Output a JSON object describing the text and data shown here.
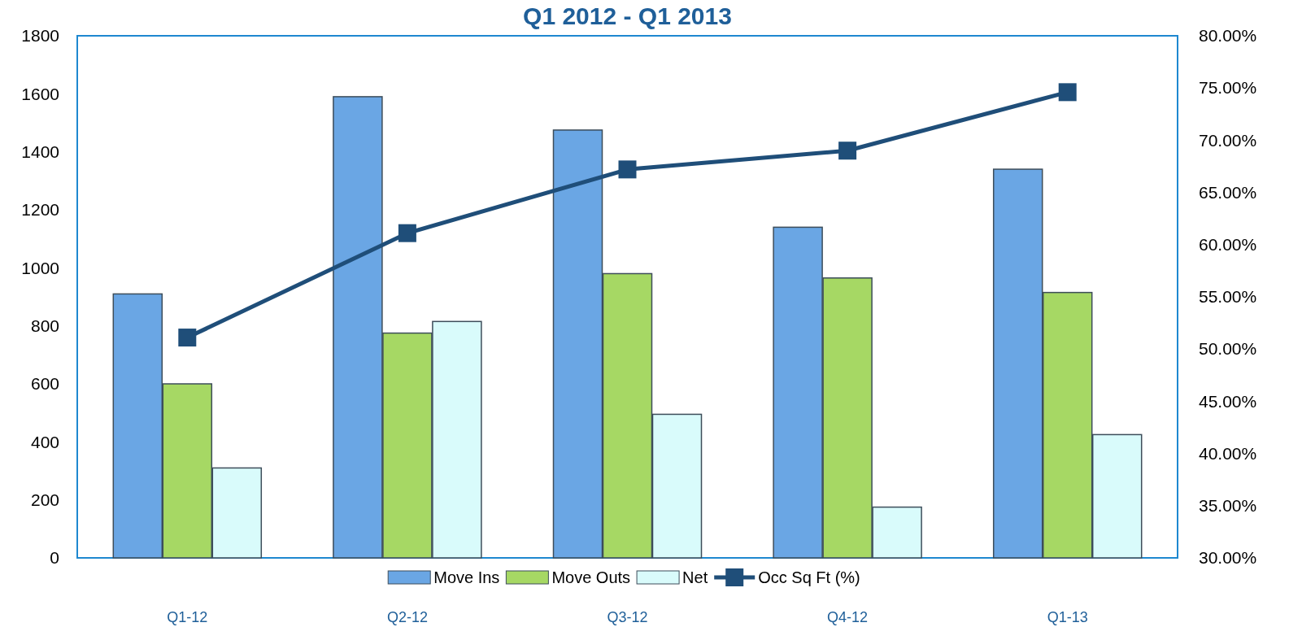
{
  "chart_data": {
    "type": "bar",
    "title": "Q1 2012 - Q1 2013",
    "categories": [
      "Q1-12",
      "Q2-12",
      "Q3-12",
      "Q4-12",
      "Q1-13"
    ],
    "series": [
      {
        "name": "Move Ins",
        "color": "#6aa6e4",
        "values": [
          910,
          1590,
          1475,
          1140,
          1340
        ]
      },
      {
        "name": "Move Outs",
        "color": "#a6d864",
        "values": [
          600,
          775,
          980,
          965,
          915
        ]
      },
      {
        "name": "Net",
        "color": "#d9fbfb",
        "values": [
          310,
          815,
          495,
          175,
          425
        ]
      },
      {
        "name": "Occ Sq Ft (%)",
        "type": "line",
        "axis": "y2",
        "color": "#1f4e79",
        "marker": "square",
        "values": [
          51.1,
          61.1,
          67.2,
          69.0,
          74.6
        ]
      }
    ],
    "ylim": [
      0,
      1800
    ],
    "yticks": [
      0,
      200,
      400,
      600,
      800,
      1000,
      1200,
      1400,
      1600,
      1800
    ],
    "y2lim": [
      30,
      80
    ],
    "y2ticks": [
      {
        "value": 30,
        "label": "30.00%"
      },
      {
        "value": 35,
        "label": "35.00%"
      },
      {
        "value": 40,
        "label": "40.00%"
      },
      {
        "value": 45,
        "label": "45.00%"
      },
      {
        "value": 50,
        "label": "50.00%"
      },
      {
        "value": 55,
        "label": "55.00%"
      },
      {
        "value": 60,
        "label": "60.00%"
      },
      {
        "value": 65,
        "label": "65.00%"
      },
      {
        "value": 70,
        "label": "70.00%"
      },
      {
        "value": 75,
        "label": "75.00%"
      },
      {
        "value": 80,
        "label": "80.00%"
      }
    ],
    "grid": false,
    "legend": "bottom"
  }
}
